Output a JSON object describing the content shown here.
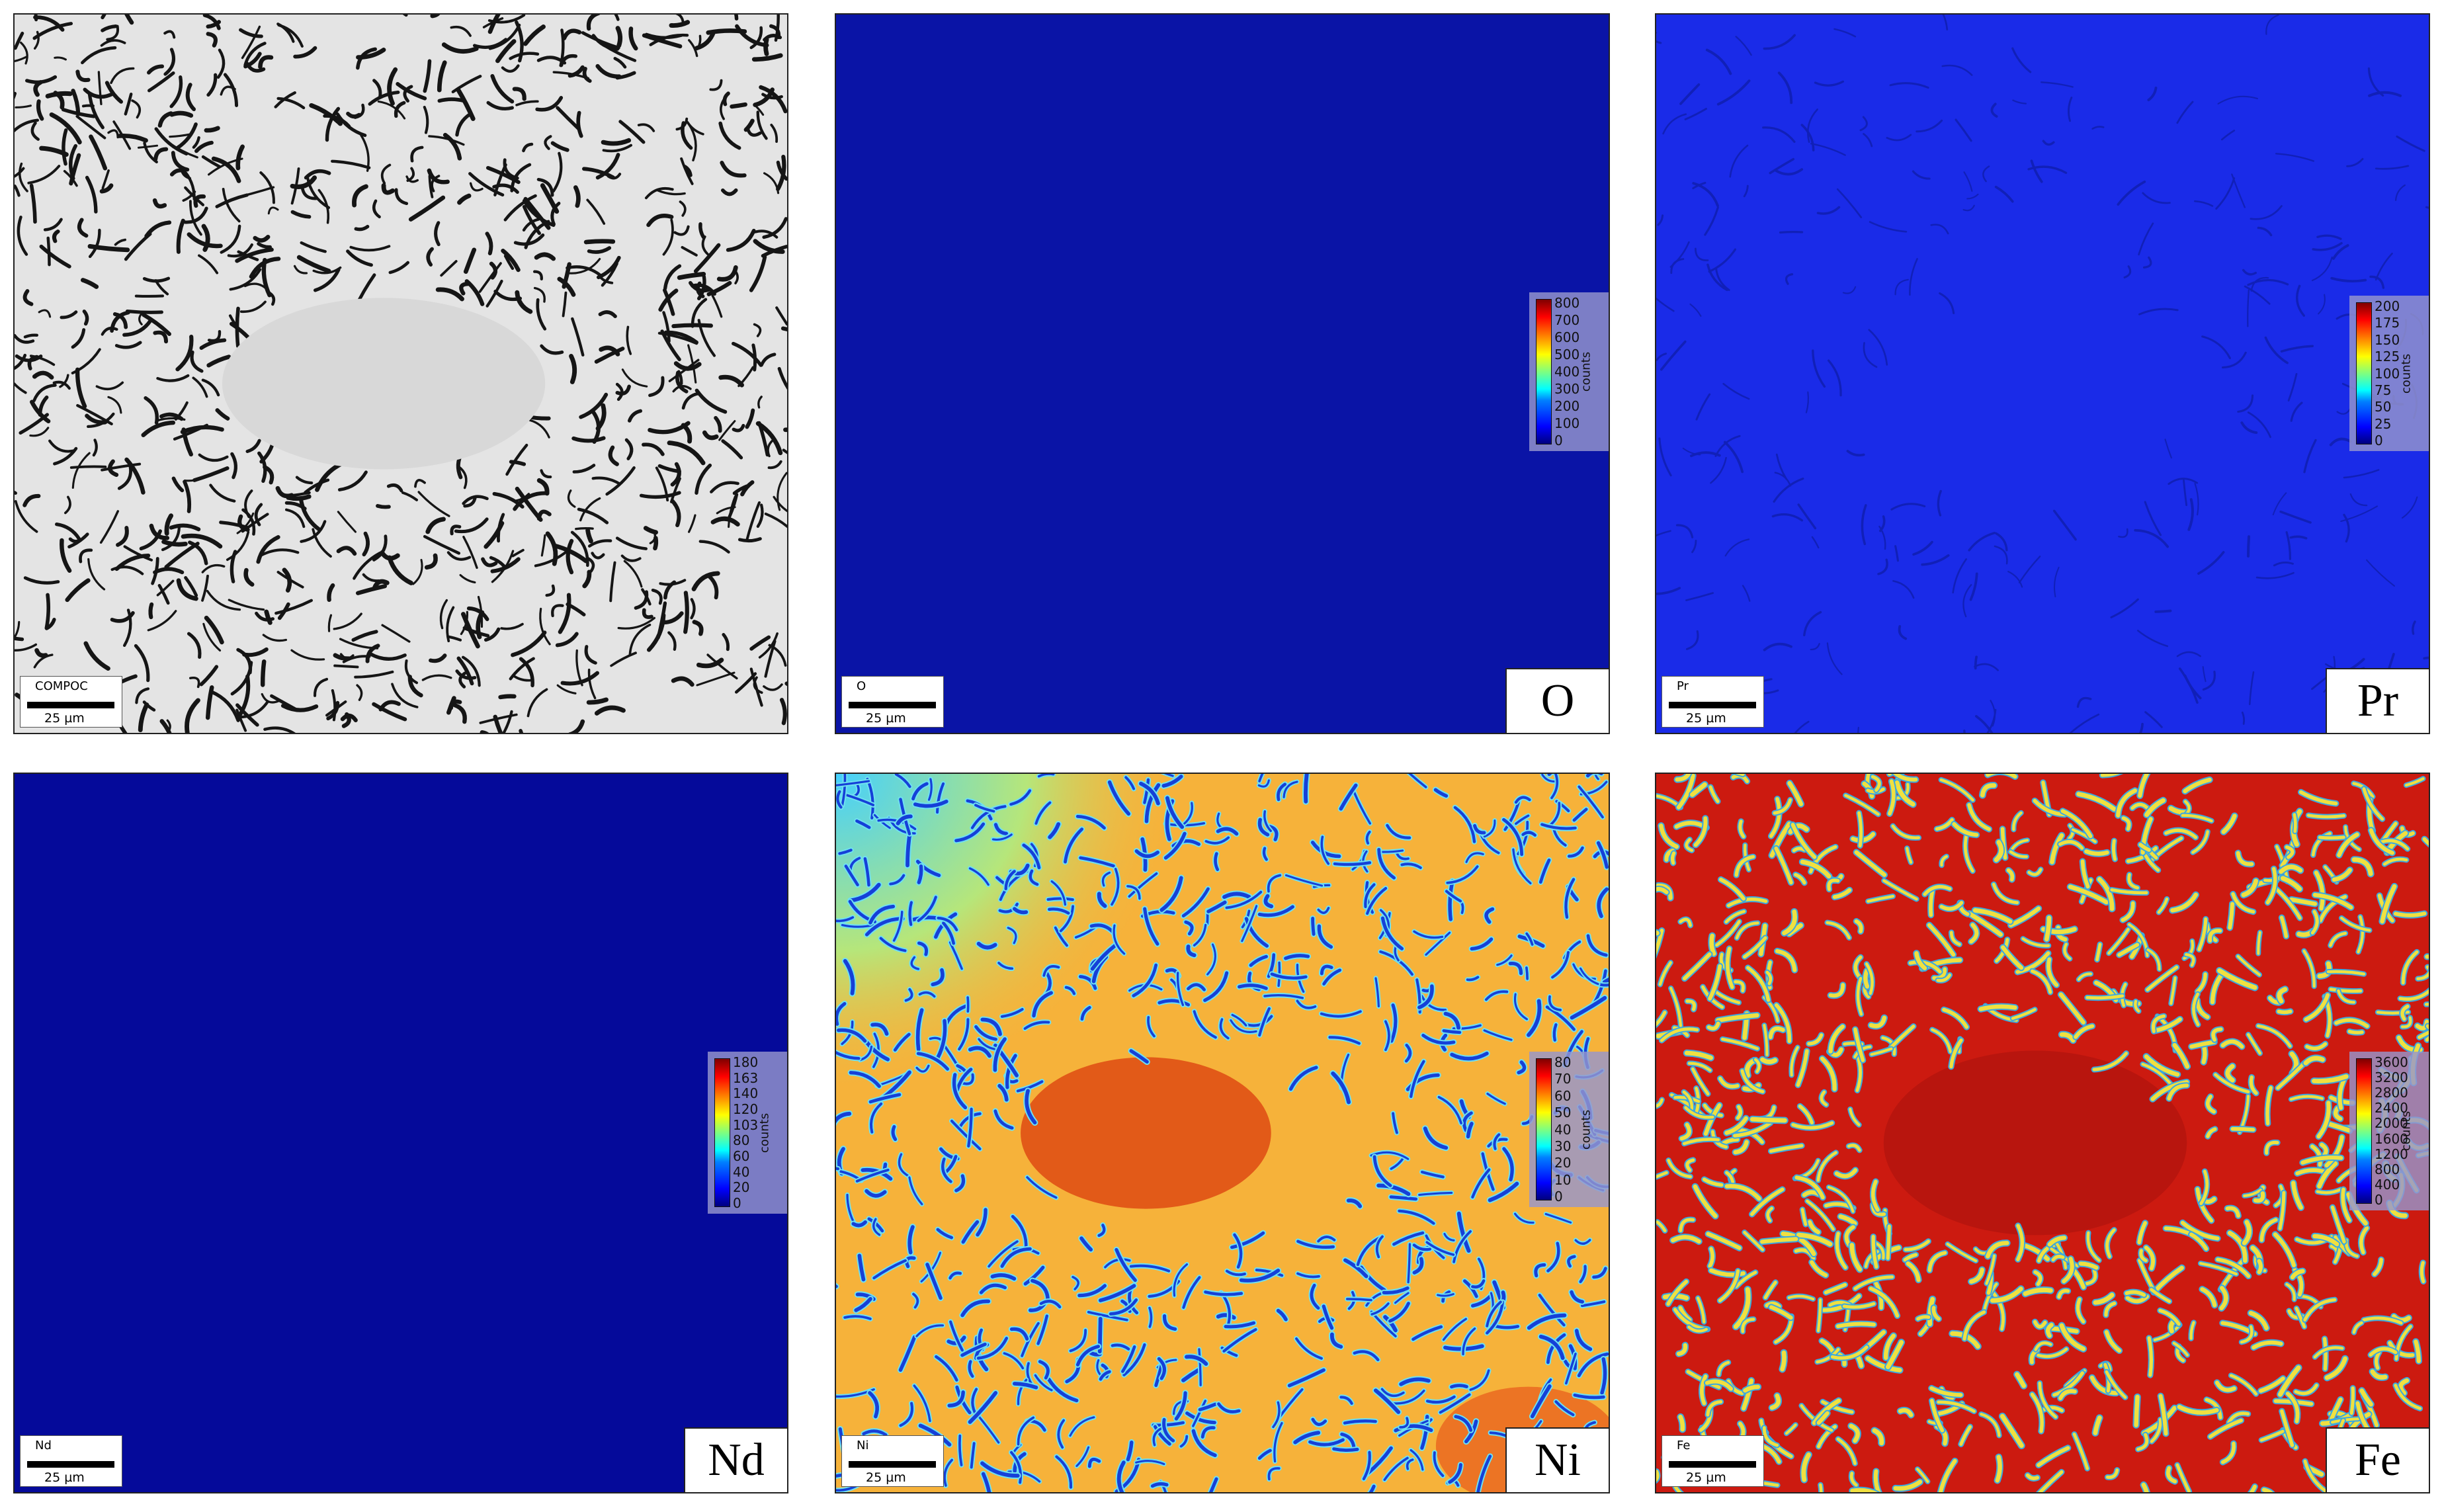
{
  "panels": [
    {
      "id": "compo",
      "channel_tag": "COMPOC",
      "scale": "25 µm",
      "element": "",
      "colorbar": null
    },
    {
      "id": "o",
      "channel_tag": "O",
      "scale": "25 µm",
      "element": "O",
      "colorbar": {
        "ticks": [
          "800",
          "700",
          "600",
          "500",
          "400",
          "300",
          "200",
          "100",
          "0"
        ],
        "unit": "counts"
      }
    },
    {
      "id": "pr",
      "channel_tag": "Pr",
      "scale": "25 µm",
      "element": "Pr",
      "colorbar": {
        "ticks": [
          "200",
          "175",
          "150",
          "125",
          "100",
          "75",
          "50",
          "25",
          "0"
        ],
        "unit": "counts"
      }
    },
    {
      "id": "nd",
      "channel_tag": "Nd",
      "scale": "25 µm",
      "element": "Nd",
      "colorbar": {
        "ticks": [
          "180",
          "163",
          "140",
          "120",
          "103",
          "80",
          "60",
          "40",
          "20",
          "0"
        ],
        "unit": "counts"
      }
    },
    {
      "id": "ni",
      "channel_tag": "Ni",
      "scale": "25 µm",
      "element": "Ni",
      "colorbar": {
        "ticks": [
          "80",
          "70",
          "60",
          "50",
          "40",
          "30",
          "20",
          "10",
          "0"
        ],
        "unit": "counts"
      }
    },
    {
      "id": "fe",
      "channel_tag": "Fe",
      "scale": "25 µm",
      "element": "Fe",
      "colorbar": {
        "ticks": [
          "3600",
          "3200",
          "2800",
          "2400",
          "2000",
          "1600",
          "1200",
          "800",
          "400",
          "0"
        ],
        "unit": "counts"
      }
    }
  ],
  "colors": {
    "compo_bg": "#e4e4e4",
    "compo_streak": "#111111",
    "o_bg": "#0a14a6",
    "pr_bg": "#1a2be8",
    "nd_bg": "#050a9a",
    "ni_bg": "#f6b23a",
    "ni_core": "#e25a18",
    "ni_streak": "#1540d8",
    "fe_bg": "#cc1a10",
    "fe_core": "#b8150e",
    "fe_streak": "#f0e040"
  }
}
